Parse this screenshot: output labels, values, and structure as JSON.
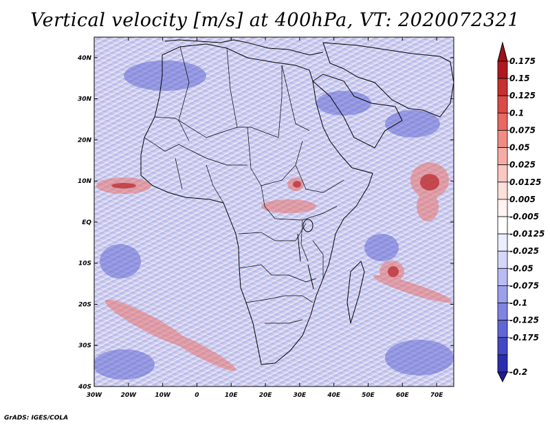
{
  "title": "Vertical velocity [m/s] at 400hPa, VT: 2020072321",
  "footer": "GrADS: IGES/COLA",
  "map": {
    "lon_range": [
      -30,
      75
    ],
    "lat_range": [
      -40,
      45
    ],
    "lon_ticks": [
      {
        "value": -30,
        "label": "30W"
      },
      {
        "value": -20,
        "label": "20W"
      },
      {
        "value": -10,
        "label": "10W"
      },
      {
        "value": 0,
        "label": "0"
      },
      {
        "value": 10,
        "label": "10E"
      },
      {
        "value": 20,
        "label": "20E"
      },
      {
        "value": 30,
        "label": "30E"
      },
      {
        "value": 40,
        "label": "40E"
      },
      {
        "value": 50,
        "label": "50E"
      },
      {
        "value": 60,
        "label": "60E"
      },
      {
        "value": 70,
        "label": "70E"
      }
    ],
    "lat_ticks": [
      {
        "value": 40,
        "label": "40N"
      },
      {
        "value": 30,
        "label": "30N"
      },
      {
        "value": 20,
        "label": "20N"
      },
      {
        "value": 10,
        "label": "10N"
      },
      {
        "value": 0,
        "label": "EQ"
      },
      {
        "value": -10,
        "label": "10S"
      },
      {
        "value": -20,
        "label": "20S"
      },
      {
        "value": -30,
        "label": "30S"
      },
      {
        "value": -40,
        "label": "40S"
      }
    ]
  },
  "colorbar": {
    "levels": [
      {
        "label": "0.175",
        "color": "#b01820"
      },
      {
        "label": "0.15",
        "color": "#c83030"
      },
      {
        "label": "0.125",
        "color": "#dc4a48"
      },
      {
        "label": "0.1",
        "color": "#e86862"
      },
      {
        "label": "0.075",
        "color": "#f08c84"
      },
      {
        "label": "0.05",
        "color": "#f6aca4"
      },
      {
        "label": "0.025",
        "color": "#fac8c0"
      },
      {
        "label": "0.0125",
        "color": "#fde0da"
      },
      {
        "label": "0.005",
        "color": "#fff4f2"
      },
      {
        "label": "-0.005",
        "color": "#ffffff"
      },
      {
        "label": "-0.0125",
        "color": "#ecedfd"
      },
      {
        "label": "-0.025",
        "color": "#d4d6fa"
      },
      {
        "label": "-0.05",
        "color": "#b8bbf4"
      },
      {
        "label": "-0.075",
        "color": "#9ca0ec"
      },
      {
        "label": "-0.1",
        "color": "#7f84e2"
      },
      {
        "label": "-0.125",
        "color": "#6066d6"
      },
      {
        "label": "-0.175",
        "color": "#4248c6"
      },
      {
        "label": "-0.2",
        "color": "#2a2db0"
      }
    ],
    "top_arrow_color": "#a01018",
    "bottom_arrow_color": "#1c1c9a"
  }
}
